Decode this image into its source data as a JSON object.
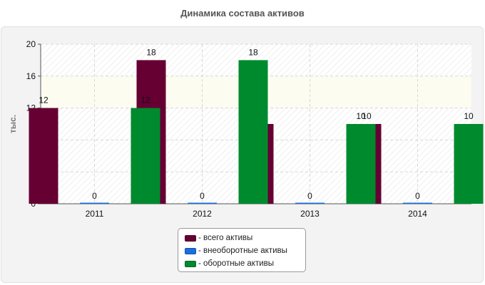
{
  "chart_data": {
    "type": "bar",
    "title": "Динамика состава активов",
    "ylabel": "тыс.",
    "xlabel": "",
    "ylim": [
      0,
      20
    ],
    "yticks": [
      0,
      4,
      8,
      12,
      16,
      20
    ],
    "grid": true,
    "legend_position": "bottom-center",
    "categories": [
      "2011",
      "2012",
      "2013",
      "2014"
    ],
    "series": [
      {
        "name": "- всего активы",
        "color": "#660033",
        "values": [
          12,
          18,
          10,
          10
        ]
      },
      {
        "name": "- внеоборотные активы",
        "color": "#1a6fe0",
        "values": [
          0,
          0,
          0,
          0
        ]
      },
      {
        "name": "- оборотные активы",
        "color": "#008a2e",
        "values": [
          12,
          18,
          10,
          10
        ]
      }
    ]
  }
}
